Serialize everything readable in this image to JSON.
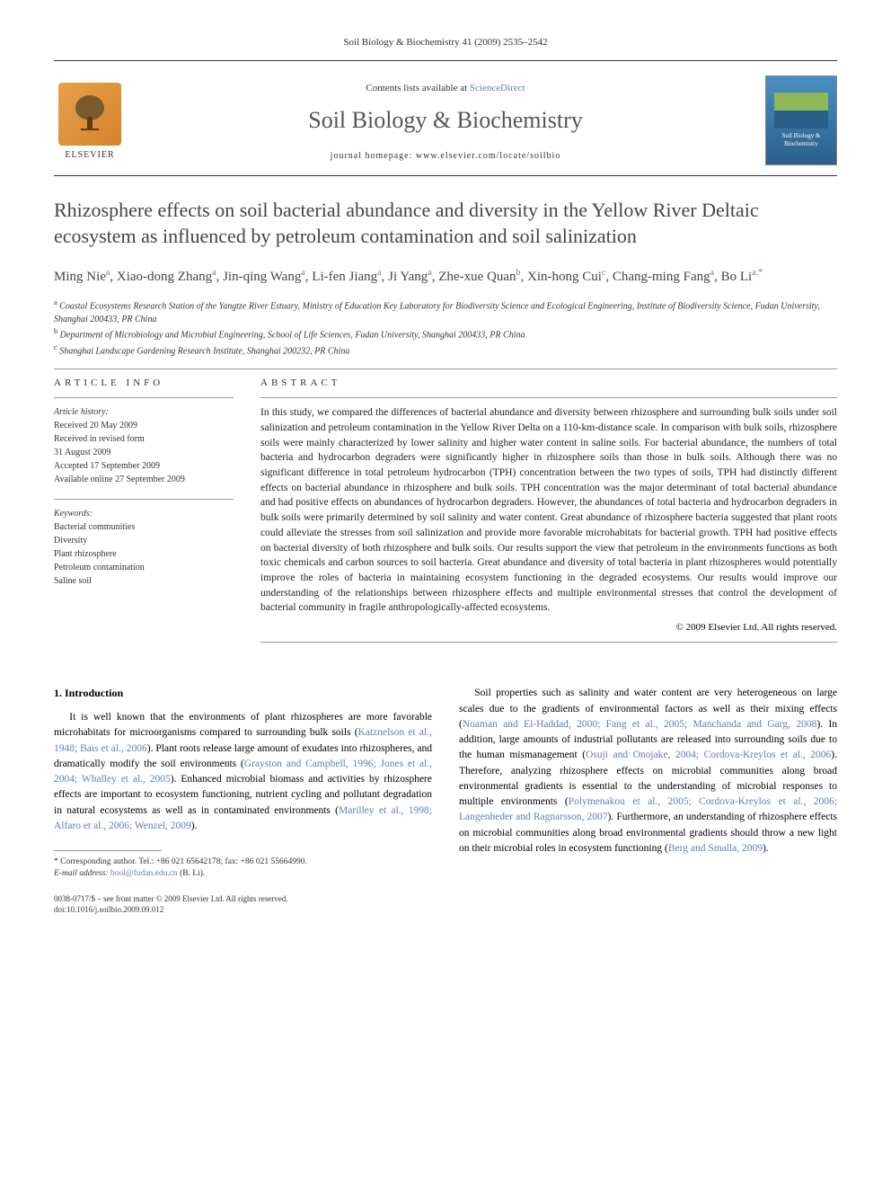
{
  "running_header": "Soil Biology & Biochemistry 41 (2009) 2535–2542",
  "banner": {
    "contents_prefix": "Contents lists available at ",
    "contents_link": "ScienceDirect",
    "journal_name": "Soil Biology & Biochemistry",
    "homepage_prefix": "journal homepage: ",
    "homepage_url": "www.elsevier.com/locate/soilbio",
    "elsevier_label": "ELSEVIER",
    "cover_label": "Soil Biology & Biochemistry"
  },
  "title": "Rhizosphere effects on soil bacterial abundance and diversity in the Yellow River Deltaic ecosystem as influenced by petroleum contamination and soil salinization",
  "authors_html": "Ming Nie<sup>a</sup>, Xiao-dong Zhang<sup>a</sup>, Jin-qing Wang<sup>a</sup>, Li-fen Jiang<sup>a</sup>, Ji Yang<sup>a</sup>, Zhe-xue Quan<sup>b</sup>, Xin-hong Cui<sup>c</sup>, Chang-ming Fang<sup>a</sup>, Bo Li<sup>a,*</sup>",
  "affiliations": {
    "a": "Coastal Ecosystems Research Station of the Yangtze River Estuary, Ministry of Education Key Laboratory for Biodiversity Science and Ecological Engineering, Institute of Biodiversity Science, Fudan University, Shanghai 200433, PR China",
    "b": "Department of Microbiology and Microbial Engineering, School of Life Sciences, Fudan University, Shanghai 200433, PR China",
    "c": "Shanghai Landscape Gardening Research Institute, Shanghai 200232, PR China"
  },
  "article_info": {
    "header": "ARTICLE INFO",
    "history_label": "Article history:",
    "history": [
      "Received 20 May 2009",
      "Received in revised form",
      "31 August 2009",
      "Accepted 17 September 2009",
      "Available online 27 September 2009"
    ],
    "keywords_label": "Keywords:",
    "keywords": [
      "Bacterial communities",
      "Diversity",
      "Plant rhizosphere",
      "Petroleum contamination",
      "Saline soil"
    ]
  },
  "abstract": {
    "header": "ABSTRACT",
    "text": "In this study, we compared the differences of bacterial abundance and diversity between rhizosphere and surrounding bulk soils under soil salinization and petroleum contamination in the Yellow River Delta on a 110-km-distance scale. In comparison with bulk soils, rhizosphere soils were mainly characterized by lower salinity and higher water content in saline soils. For bacterial abundance, the numbers of total bacteria and hydrocarbon degraders were significantly higher in rhizosphere soils than those in bulk soils. Although there was no significant difference in total petroleum hydrocarbon (TPH) concentration between the two types of soils, TPH had distinctly different effects on bacterial abundance in rhizosphere and bulk soils. TPH concentration was the major determinant of total bacterial abundance and had positive effects on abundances of hydrocarbon degraders. However, the abundances of total bacteria and hydrocarbon degraders in bulk soils were primarily determined by soil salinity and water content. Great abundance of rhizosphere bacteria suggested that plant roots could alleviate the stresses from soil salinization and provide more favorable microhabitats for bacterial growth. TPH had positive effects on bacterial diversity of both rhizosphere and bulk soils. Our results support the view that petroleum in the environments functions as both toxic chemicals and carbon sources to soil bacteria. Great abundance and diversity of total bacteria in plant rhizospheres would potentially improve the roles of bacteria in maintaining ecosystem functioning in the degraded ecosystems. Our results would improve our understanding of the relationships between rhizosphere effects and multiple environmental stresses that control the development of bacterial community in fragile anthropologically-affected ecosystems.",
    "copyright": "© 2009 Elsevier Ltd. All rights reserved."
  },
  "intro": {
    "heading": "1. Introduction",
    "left_paragraph": "It is well known that the environments of plant rhizospheres are more favorable microhabitats for microorganisms compared to surrounding bulk soils (Katznelson et al., 1948; Bais et al., 2006). Plant roots release large amount of exudates into rhizospheres, and dramatically modify the soil environments (Grayston and Campbell, 1996; Jones et al., 2004; Whalley et al., 2005). Enhanced microbial biomass and activities by rhizosphere effects are important to ecosystem functioning, nutrient cycling and pollutant degradation in natural ecosystems as well as in contaminated environments (Marilley et al., 1998; Alfaro et al., 2006; Wenzel, 2009).",
    "right_paragraph": "Soil properties such as salinity and water content are very heterogeneous on large scales due to the gradients of environmental factors as well as their mixing effects (Noaman and El-Haddad, 2000; Fang et al., 2005; Manchanda and Garg, 2008). In addition, large amounts of industrial pollutants are released into surrounding soils due to the human mismanagement (Osuji and Onojake, 2004; Cordova-Kreylos et al., 2006). Therefore, analyzing rhizosphere effects on microbial communities along broad environmental gradients is essential to the understanding of microbial responses to multiple environments (Polymenakou et al., 2005; Cordova-Kreylos et al., 2006; Langenheder and Ragnarsson, 2007). Furthermore, an understanding of rhizosphere effects on microbial communities along broad environmental gradients should throw a new light on their microbial roles in ecosystem functioning (Berg and Smalla, 2009)."
  },
  "footnote": {
    "correspond": "* Corresponding author. Tel.: +86 021 65642178; fax: +86 021 55664990.",
    "email_label": "E-mail address: ",
    "email": "bool@fudan.edu.cn",
    "email_suffix": " (B. Li)."
  },
  "bottom": {
    "line1": "0038-0717/$ – see front matter © 2009 Elsevier Ltd. All rights reserved.",
    "line2": "doi:10.1016/j.soilbio.2009.09.012"
  },
  "colors": {
    "link": "#5b7fb8",
    "text": "#222222",
    "muted": "#444444"
  }
}
